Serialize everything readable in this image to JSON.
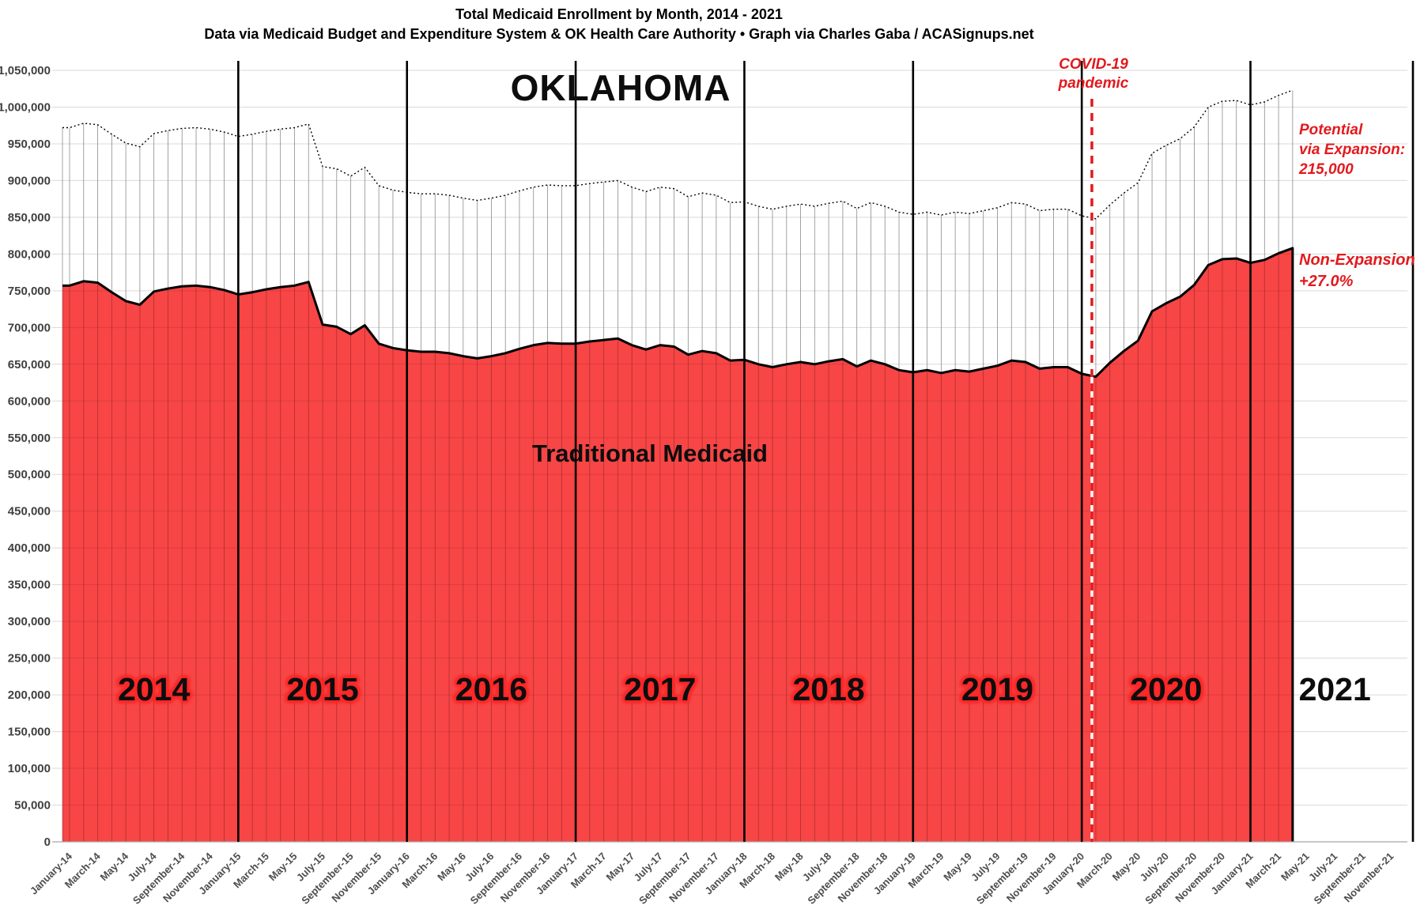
{
  "title": {
    "line1": "Total Medicaid Enrollment by Month, 2014 - 2021",
    "line2": "Data via Medicaid Budget and Expenditure System & OK Health Care Authority  •  Graph via Charles Gaba / ACASignups.net"
  },
  "state_label": "OKLAHOMA",
  "area_label": "Traditional Medicaid",
  "annotations": {
    "covid": {
      "line1": "COVID-19",
      "line2": "pandemic"
    },
    "potential": {
      "line1": "Potential",
      "line2": "via Expansion:",
      "line3": "215,000"
    },
    "non_expansion": {
      "line1": "Non-Expansion",
      "line2": "+27.0%"
    }
  },
  "colors": {
    "area_fill": "#f84545",
    "area_outline": "#000000",
    "gridline": "#d9d9d9",
    "column_line": "#8c8c8c",
    "axis_line": "#a6a6a6",
    "annotation_red": "#e3191d",
    "year_divider": "#000000",
    "x_tick_text": "#4d4d4d",
    "y_tick_text": "#404040",
    "year_halo": "#fb2a2a"
  },
  "chart_data": {
    "type": "area",
    "title": "Total Medicaid Enrollment by Month, 2014 - 2021",
    "xlabel": "",
    "ylabel": "",
    "ylim": [
      0,
      1050000
    ],
    "grid": true,
    "x_start": "January-2014",
    "x_end_data": "April-2021",
    "x_end_axis": "December-2021",
    "months_in_data": 88,
    "expansion_offset": 215000,
    "covid_line_month_index": 73,
    "y_ticks": [
      0,
      50000,
      100000,
      150000,
      200000,
      250000,
      300000,
      350000,
      400000,
      450000,
      500000,
      550000,
      600000,
      650000,
      700000,
      750000,
      800000,
      850000,
      900000,
      950000,
      1000000,
      1050000
    ],
    "x_tick_labels": [
      "January-14",
      "March-14",
      "May-14",
      "July-14",
      "September-14",
      "November-14",
      "January-15",
      "March-15",
      "May-15",
      "July-15",
      "September-15",
      "November-15",
      "January-16",
      "March-16",
      "May-16",
      "July-16",
      "September-16",
      "November-16",
      "January-17",
      "March-17",
      "May-17",
      "July-17",
      "September-17",
      "November-17",
      "January-18",
      "March-18",
      "May-18",
      "July-18",
      "September-18",
      "November-18",
      "January-19",
      "March-19",
      "May-19",
      "July-19",
      "September-19",
      "November-19",
      "January-20",
      "March-20",
      "May-20",
      "July-20",
      "September-20",
      "November-20",
      "January-21",
      "March-21",
      "May-21",
      "July-21",
      "September-21",
      "November-21"
    ],
    "years": [
      {
        "label": "2014",
        "halo": true
      },
      {
        "label": "2015",
        "halo": true
      },
      {
        "label": "2016",
        "halo": true
      },
      {
        "label": "2017",
        "halo": true
      },
      {
        "label": "2018",
        "halo": true
      },
      {
        "label": "2019",
        "halo": true
      },
      {
        "label": "2020",
        "halo": true
      },
      {
        "label": "2021",
        "halo": false
      }
    ],
    "series": [
      {
        "name": "Traditional Medicaid",
        "style": "red-area-black-outline",
        "values": [
          757000,
          763000,
          761000,
          748000,
          736000,
          731000,
          749000,
          753000,
          756000,
          757000,
          755000,
          751000,
          745000,
          748000,
          752000,
          755000,
          757000,
          762000,
          704000,
          701000,
          691000,
          703000,
          678000,
          672000,
          669000,
          667000,
          667000,
          665000,
          661000,
          658000,
          661000,
          665000,
          671000,
          676000,
          679000,
          678000,
          678000,
          681000,
          683000,
          685000,
          676000,
          670000,
          676000,
          674000,
          663000,
          668000,
          665000,
          655000,
          656000,
          650000,
          646000,
          650000,
          653000,
          650000,
          654000,
          657000,
          647000,
          655000,
          650000,
          642000,
          639000,
          642000,
          638000,
          642000,
          640000,
          644000,
          648000,
          655000,
          653000,
          644000,
          646000,
          646000,
          637000,
          633000,
          652000,
          668000,
          682000,
          722000,
          733000,
          742000,
          758000,
          785000,
          793000,
          794000,
          788000,
          792000,
          801000,
          808000
        ]
      },
      {
        "name": "Potential via Expansion",
        "style": "black-dotted-line",
        "values": [
          972000,
          978000,
          976000,
          963000,
          951000,
          946000,
          964000,
          968000,
          971000,
          972000,
          970000,
          966000,
          960000,
          963000,
          967000,
          970000,
          972000,
          977000,
          919000,
          916000,
          906000,
          918000,
          893000,
          887000,
          884000,
          882000,
          882000,
          880000,
          876000,
          873000,
          876000,
          880000,
          886000,
          891000,
          894000,
          893000,
          893000,
          896000,
          898000,
          900000,
          891000,
          885000,
          891000,
          889000,
          878000,
          883000,
          880000,
          870000,
          871000,
          865000,
          861000,
          865000,
          868000,
          865000,
          869000,
          872000,
          862000,
          870000,
          865000,
          857000,
          854000,
          857000,
          853000,
          857000,
          855000,
          859000,
          863000,
          870000,
          868000,
          859000,
          861000,
          861000,
          852000,
          848000,
          867000,
          883000,
          897000,
          937000,
          948000,
          957000,
          973000,
          1000000,
          1008000,
          1009000,
          1003000,
          1007000,
          1016000,
          1023000
        ]
      }
    ]
  }
}
